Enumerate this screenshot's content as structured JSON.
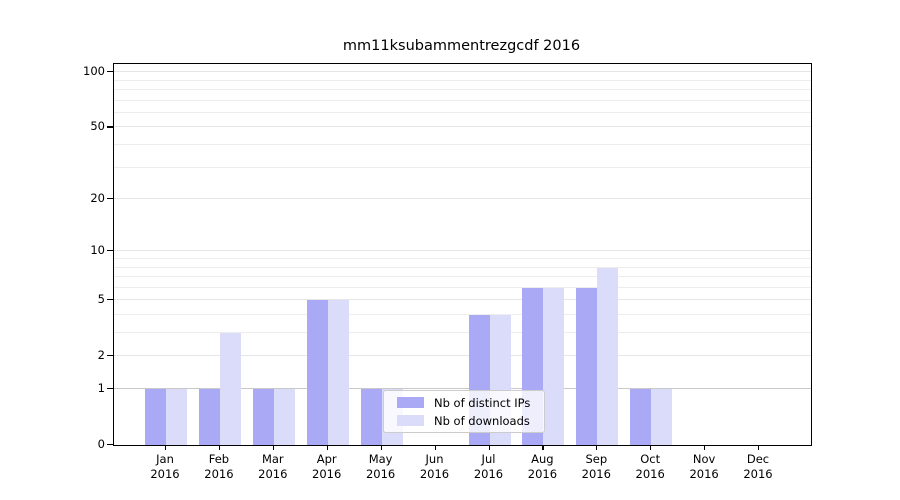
{
  "title": "mm11ksubammentrezgcdf 2016",
  "colors": {
    "ips": "#a9a9f6",
    "downloads": "#dbdbfa",
    "spine": "#000000",
    "grid_minor": "#ededed",
    "grid_major": "#e6e6e6",
    "grid_baseline_one": "#c8c8c8",
    "legend_border": "#cccccc"
  },
  "legend": {
    "items": [
      {
        "label": "Nb of distinct IPs",
        "series": "ips"
      },
      {
        "label": "Nb of downloads",
        "series": "downloads"
      }
    ]
  },
  "chart_data": {
    "type": "bar",
    "title": "mm11ksubammentrezgcdf 2016",
    "categories": [
      "Jan",
      "Feb",
      "Mar",
      "Apr",
      "May",
      "Jun",
      "Jul",
      "Aug",
      "Sep",
      "Oct",
      "Nov",
      "Dec"
    ],
    "x_sublabel": "2016",
    "series": [
      {
        "name": "Nb of distinct IPs",
        "color_key": "ips",
        "values": [
          1,
          1,
          1,
          5,
          1,
          0,
          4,
          6,
          6,
          1,
          0,
          0
        ]
      },
      {
        "name": "Nb of downloads",
        "color_key": "downloads",
        "values": [
          1,
          3,
          1,
          5,
          1,
          0,
          4,
          6,
          8,
          1,
          0,
          0
        ]
      }
    ],
    "xlabel": "",
    "ylabel": "",
    "yscale": "log1p",
    "yticks": [
      0,
      1,
      2,
      5,
      10,
      20,
      50,
      100
    ],
    "grid_values_minor": [
      3,
      4,
      6,
      7,
      8,
      9,
      30,
      40,
      60,
      70,
      80,
      90
    ],
    "grid_values_major": [
      1,
      2,
      5,
      10,
      20,
      50,
      100
    ],
    "ylim": [
      0,
      110
    ],
    "grid": true,
    "legend_position": "lower center, inside plot"
  }
}
